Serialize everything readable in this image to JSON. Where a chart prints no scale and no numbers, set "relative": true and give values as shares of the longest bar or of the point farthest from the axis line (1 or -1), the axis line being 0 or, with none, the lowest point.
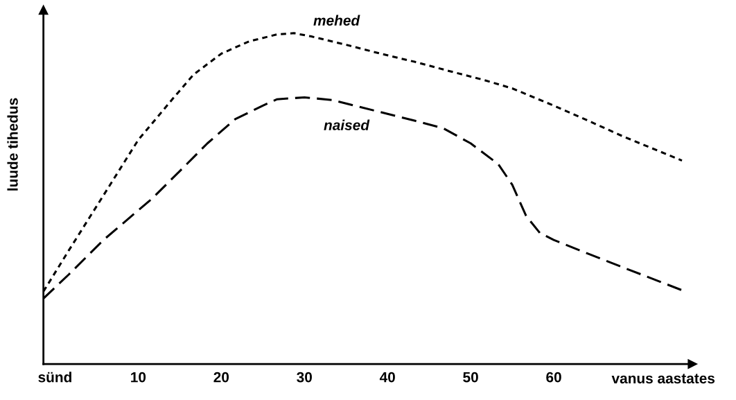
{
  "chart_data": {
    "type": "line",
    "relative": true,
    "xlabel": "vanus aastates",
    "ylabel": "luude tihedus",
    "xlim": [
      -1.4,
      76.7
    ],
    "xticks": [
      {
        "value": 0,
        "label": "sünd"
      },
      10,
      20,
      30,
      40,
      50,
      60
    ],
    "grid": false,
    "legend": false,
    "marker": "none",
    "series": [
      {
        "name": "mehed",
        "color": "#000000",
        "line_style": "dotted",
        "x": [
          -1.4,
          1.67,
          5.83,
          10,
          14.17,
          16.67,
          20,
          23.33,
          26.67,
          28.75,
          30.83,
          35,
          39.17,
          43.33,
          47.5,
          51.67,
          55,
          60,
          64.17,
          68.33,
          75.42
        ],
        "values": [
          0.219,
          0.344,
          0.51,
          0.677,
          0.802,
          0.875,
          0.938,
          0.975,
          0.996,
          1.0,
          0.99,
          0.965,
          0.938,
          0.913,
          0.885,
          0.858,
          0.833,
          0.781,
          0.735,
          0.688,
          0.615
        ]
      },
      {
        "name": "naised",
        "color": "#000000",
        "line_style": "dashed",
        "x": [
          -1.4,
          1.67,
          5.83,
          11.67,
          15,
          18.33,
          21.67,
          25,
          26.67,
          30,
          33.33,
          36.67,
          40,
          43.33,
          46.67,
          50,
          53.33,
          55,
          56.67,
          58.33,
          60,
          64.17,
          68.33,
          75.42
        ],
        "values": [
          0.198,
          0.271,
          0.375,
          0.5,
          0.583,
          0.667,
          0.74,
          0.781,
          0.8,
          0.806,
          0.798,
          0.777,
          0.756,
          0.735,
          0.713,
          0.667,
          0.604,
          0.542,
          0.448,
          0.396,
          0.375,
          0.333,
          0.292,
          0.223
        ]
      }
    ]
  }
}
